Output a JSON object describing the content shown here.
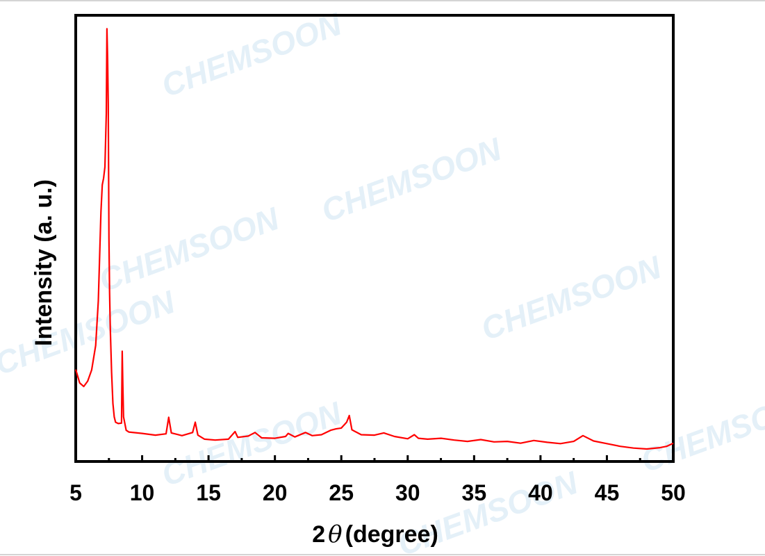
{
  "watermark": {
    "text": "CHEMSOON"
  },
  "colors": {
    "series": "#ff0000",
    "axis": "#000000",
    "watermark": "#e4f0f8"
  },
  "chart_data": {
    "type": "line",
    "title": "",
    "xlabel": "2θ(degree)",
    "xlabel_parts": {
      "prefix": "2",
      "symbol": "θ",
      "suffix": "(degree)"
    },
    "ylabel": "Intensity (a. u.)",
    "xlim": [
      5,
      50
    ],
    "ylim": [
      0,
      100
    ],
    "x_ticks": [
      5,
      10,
      15,
      20,
      25,
      30,
      35,
      40,
      45,
      50
    ],
    "x_tick_labels": [
      "5",
      "10",
      "15",
      "20",
      "25",
      "30",
      35,
      "40",
      "45",
      "50"
    ],
    "y_ticks_shown": false,
    "grid": false,
    "legend": "none",
    "series": [
      {
        "x": [
          5.0,
          5.3,
          5.6,
          5.9,
          6.2,
          6.5,
          6.7,
          6.9,
          7.0,
          7.1,
          7.2,
          7.3,
          7.35,
          7.4,
          7.45,
          7.5,
          7.55,
          7.6,
          7.7,
          7.8,
          7.9,
          8.0,
          8.2,
          8.45,
          8.5,
          8.55,
          8.6,
          8.8,
          9.0,
          10.0,
          11.0,
          11.8,
          12.0,
          12.2,
          13.0,
          13.8,
          14.0,
          14.2,
          14.7,
          15.5,
          16.5,
          17.0,
          17.2,
          18.0,
          18.5,
          19.0,
          20.0,
          20.8,
          21.0,
          21.5,
          22.3,
          22.8,
          23.5,
          24.2,
          24.6,
          25.0,
          25.4,
          25.6,
          25.8,
          26.5,
          27.5,
          28.2,
          29.0,
          30.0,
          30.5,
          30.8,
          31.5,
          32.5,
          33.5,
          34.5,
          35.5,
          36.5,
          37.5,
          38.5,
          39.5,
          40.5,
          41.5,
          42.5,
          43.2,
          44.0,
          45.0,
          46.0,
          47.0,
          48.0,
          49.0,
          49.5,
          50.0
        ],
        "y": [
          20.6,
          17.6,
          16.8,
          18.0,
          20.5,
          26.0,
          36.0,
          56.0,
          62.0,
          63.5,
          66.0,
          78.0,
          97.0,
          90.0,
          80.0,
          50.0,
          38.0,
          30.0,
          20.0,
          13.0,
          10.0,
          8.8,
          8.5,
          8.6,
          24.7,
          17.0,
          10.0,
          7.0,
          6.6,
          6.3,
          5.9,
          6.2,
          9.9,
          6.4,
          5.8,
          6.5,
          8.8,
          5.9,
          5.0,
          4.8,
          5.0,
          6.7,
          5.4,
          5.7,
          6.5,
          5.3,
          5.2,
          5.6,
          6.3,
          5.5,
          6.5,
          5.8,
          6.0,
          7.0,
          7.3,
          7.5,
          8.8,
          10.3,
          7.1,
          6.0,
          5.9,
          6.4,
          5.6,
          5.1,
          6.0,
          5.2,
          5.0,
          5.2,
          4.8,
          4.5,
          4.9,
          4.4,
          4.5,
          4.1,
          4.7,
          4.3,
          4.0,
          4.5,
          5.8,
          4.6,
          4.0,
          3.4,
          3.0,
          2.8,
          3.1,
          3.4,
          4.1
        ]
      }
    ]
  }
}
